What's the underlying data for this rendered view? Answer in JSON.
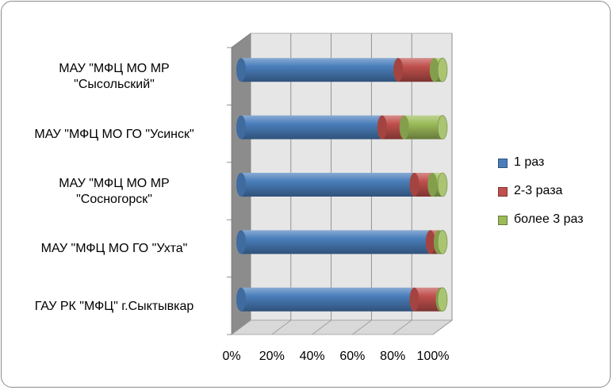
{
  "chart_data": {
    "type": "bar",
    "orientation": "horizontal",
    "stacked": "percent",
    "style": "3d-cylinder",
    "categories": [
      "ГАУ РК \"МФЦ\" г.Сыктывкар",
      "МАУ \"МФЦ МО ГО \"Ухта\"",
      "МАУ \"МФЦ МО МР \"Сосногорск\"",
      "МАУ \"МФЦ  МО ГО  \"Усинск\"",
      "МАУ \"МФЦ  МО МР \"Сысольский\""
    ],
    "category_display": [
      "ГАУ РК \"МФЦ\" г.Сыктывкар",
      "МАУ \"МФЦ МО ГО \"Ухта\"",
      "МАУ \"МФЦ МО МР\n\"Сосногорск\"",
      "МАУ \"МФЦ  МО ГО  \"Усинск\"",
      "МАУ \"МФЦ  МО МР\n\"Сысольский\""
    ],
    "series": [
      {
        "name": "1 раз",
        "color": "#4a7ebb",
        "values": [
          86,
          94,
          86,
          70,
          78
        ]
      },
      {
        "name": "2-3 раза",
        "color": "#c0504d",
        "values": [
          13,
          4,
          9,
          11,
          18
        ]
      },
      {
        "name": "более 3 раз",
        "color": "#9bbb59",
        "values": [
          1,
          2,
          5,
          19,
          4
        ]
      }
    ],
    "x_ticks": [
      "0%",
      "20%",
      "40%",
      "60%",
      "80%",
      "100%"
    ],
    "xlim": [
      0,
      100
    ],
    "grid": true,
    "legend_position": "right"
  }
}
